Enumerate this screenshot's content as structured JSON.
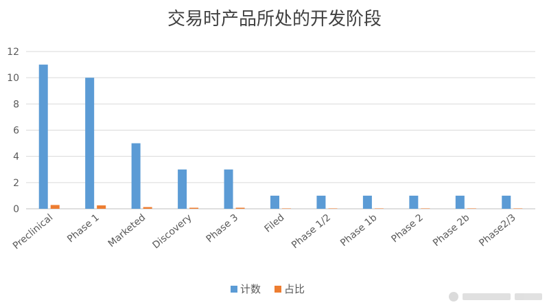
{
  "chart_data": {
    "type": "bar",
    "title": "交易时产品所处的开发阶段",
    "categories": [
      "Preclinical",
      "Phase 1",
      "Marketed",
      "Discovery",
      "Phase 3",
      "Filed",
      "Phase 1/2",
      "Phase 1b",
      "Phase 2",
      "Phase 2b",
      "Phase2/3"
    ],
    "series": [
      {
        "name": "计数",
        "color": "#5b9bd5",
        "values": [
          11,
          10,
          5,
          3,
          3,
          1,
          1,
          1,
          1,
          1,
          1
        ]
      },
      {
        "name": "占比",
        "color": "#ed7d31",
        "values": [
          0.29,
          0.26,
          0.13,
          0.08,
          0.08,
          0.03,
          0.03,
          0.03,
          0.03,
          0.03,
          0.03
        ]
      }
    ],
    "ylim": [
      0,
      12
    ],
    "yticks": [
      0,
      2,
      4,
      6,
      8,
      10,
      12
    ],
    "grid": true,
    "legend_position": "bottom"
  }
}
